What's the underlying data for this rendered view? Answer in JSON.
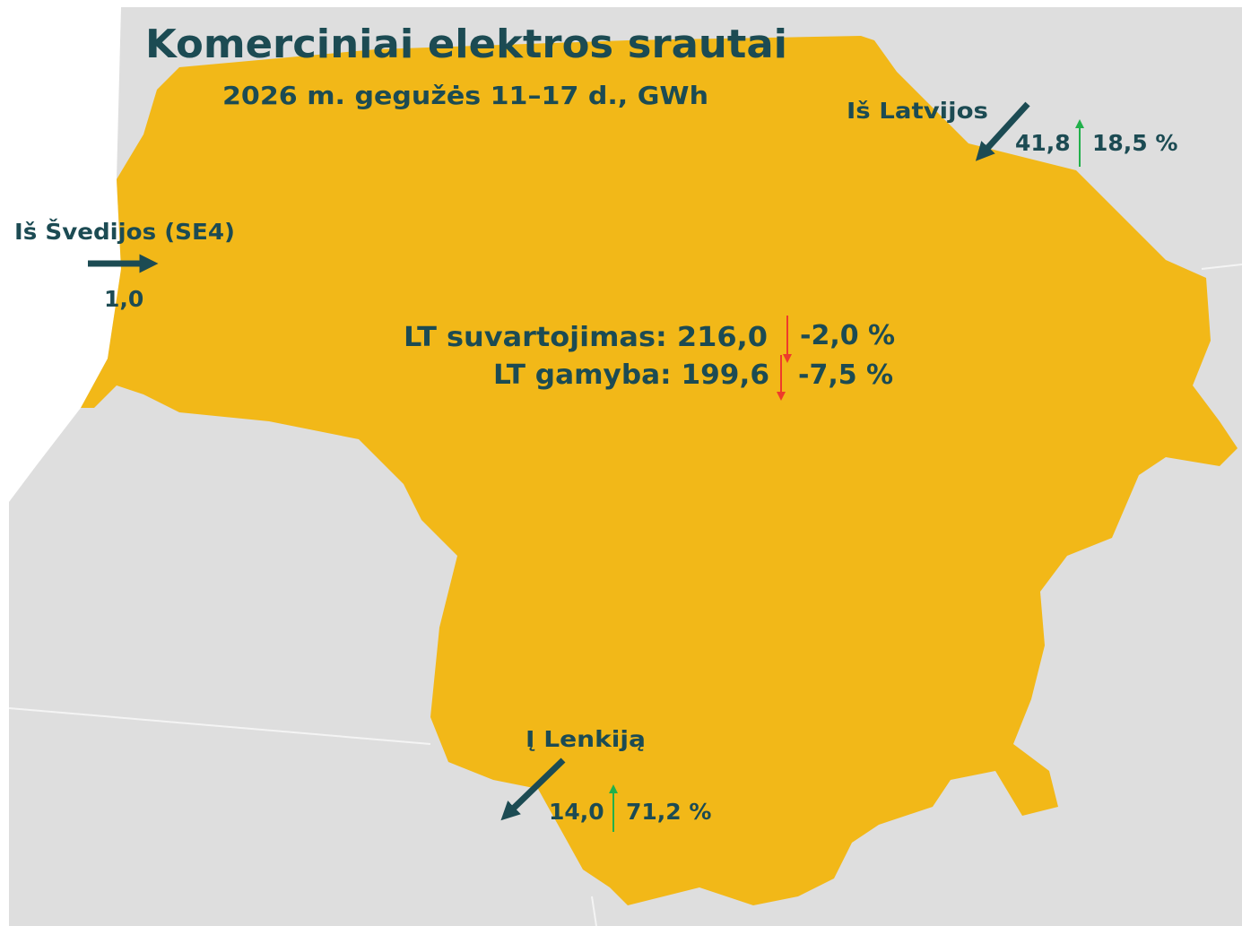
{
  "header": {
    "title": "Komerciniai elektros srautai",
    "subtitle": "2026 m. gegužės 11–17 d., GWh"
  },
  "flows": [
    {
      "label": "Iš Švedijos (SE4)",
      "value": "1,0"
    },
    {
      "label": "Iš Latvijos",
      "value": "41,8",
      "change": "18,5 %"
    },
    {
      "label": "Į Lenkiją",
      "value": "14,0",
      "change": "71,2 %"
    }
  ],
  "stats": [
    {
      "label": "LT suvartojimas: 216,0",
      "change": "-2,0 %"
    },
    {
      "label": "LT gamyba: 199,6",
      "change": "-7,5 %"
    }
  ]
}
